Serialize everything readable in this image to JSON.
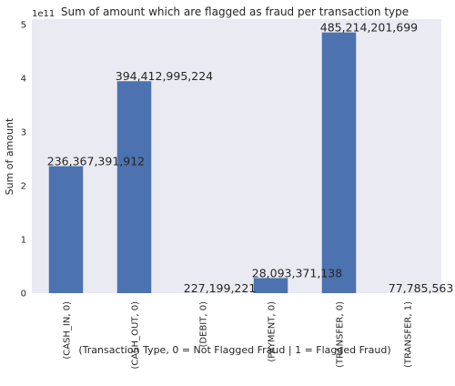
{
  "chart_data": {
    "type": "bar",
    "title": "Sum of amount which are flagged as fraud per transaction type",
    "xlabel": "(Transaction Type, 0 = Not Flagged Fraud | 1 = Flagged Fraud)",
    "ylabel": "Sum of amount",
    "y_multiplier_label": "1e11",
    "categories": [
      "(CASH_IN, 0)",
      "(CASH_OUT, 0)",
      "(DEBIT, 0)",
      "(PAYMENT, 0)",
      "(TRANSFER, 0)",
      "(TRANSFER, 1)"
    ],
    "values": [
      236367391912,
      394412995224,
      227199221,
      28093371138,
      485214201699,
      77785563
    ],
    "data_labels": [
      "236,367,391,912",
      "394,412,995,224",
      "227,199,221",
      "28,093,371,138",
      "485,214,201,699",
      "77,785,563"
    ],
    "y_ticks": [
      0,
      1,
      2,
      3,
      4,
      5
    ],
    "ylim": [
      0,
      510000000000
    ],
    "grid": false,
    "colors": {
      "bar": "#4c72b0",
      "background": "#eaeaf2"
    }
  }
}
